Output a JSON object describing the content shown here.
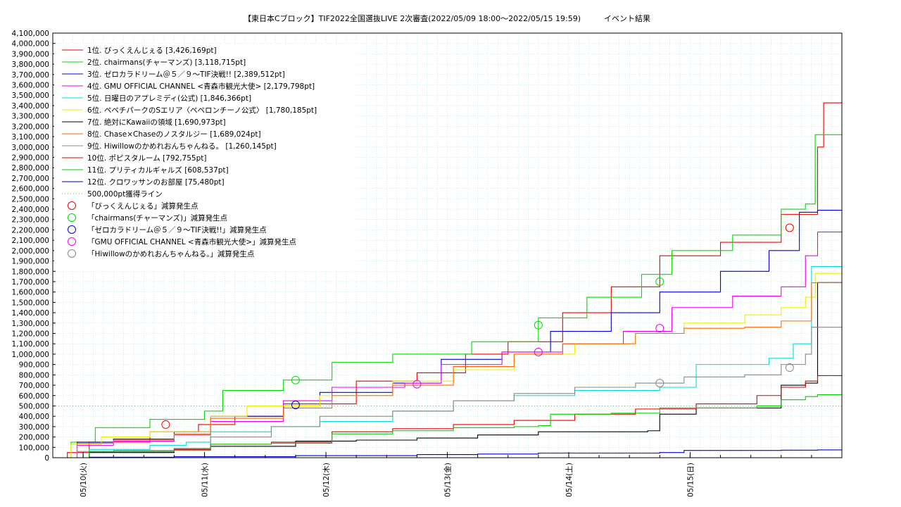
{
  "chart_data": {
    "type": "line",
    "title": "【東日本Cブロック】TIF2022全国選抜LIVE 2次審査(2022/05/09 18:00～2022/05/15 19:59)　　　イベント結果",
    "x_start": "2022/05/09 18:00",
    "x_end": "2022/05/15 19:59",
    "x_ticks": [
      "05/10(火)",
      "05/11(水)",
      "05/12(木)",
      "05/13(金)",
      "05/14(土)",
      "05/15(日)"
    ],
    "ylim": [
      0,
      4100000
    ],
    "y_tick_step": 100000,
    "grid": true,
    "legend_position": "top-left",
    "threshold": {
      "label": "500,000pt獲得ライン",
      "value": 500000,
      "color": "#66cc66"
    },
    "series": [
      {
        "name": "1位. びっくえんじぇる [3,426,169pt]",
        "color": "#ee0000",
        "points": [
          [
            0,
            0
          ],
          [
            0.12,
            50000
          ],
          [
            0.3,
            150000
          ],
          [
            0.8,
            250000
          ],
          [
            1.2,
            320000
          ],
          [
            1.5,
            400000
          ],
          [
            1.9,
            520000
          ],
          [
            2.5,
            740000
          ],
          [
            3.0,
            820000
          ],
          [
            3.4,
            1000000
          ],
          [
            3.75,
            1120000
          ],
          [
            4.2,
            1400000
          ],
          [
            4.6,
            1650000
          ],
          [
            5.0,
            1950000
          ],
          [
            5.5,
            2080000
          ],
          [
            6.0,
            2350000
          ],
          [
            6.2,
            2350000
          ],
          [
            6.3,
            3000000
          ],
          [
            6.35,
            3426169
          ],
          [
            6.5,
            3426169
          ]
        ]
      },
      {
        "name": "2位. chairmans(チャーマンズ) [3,118,715pt]",
        "color": "#00dd00",
        "points": [
          [
            0,
            0
          ],
          [
            0.15,
            150000
          ],
          [
            0.35,
            290000
          ],
          [
            0.8,
            370000
          ],
          [
            1.25,
            450000
          ],
          [
            1.4,
            650000
          ],
          [
            1.9,
            750000
          ],
          [
            2.3,
            920000
          ],
          [
            2.8,
            1000000
          ],
          [
            3.45,
            1120000
          ],
          [
            4.0,
            1350000
          ],
          [
            4.4,
            1550000
          ],
          [
            4.85,
            1770000
          ],
          [
            5.1,
            2000000
          ],
          [
            5.6,
            2150000
          ],
          [
            6.0,
            2400000
          ],
          [
            6.2,
            2450000
          ],
          [
            6.28,
            3118715
          ],
          [
            6.5,
            3118715
          ]
        ]
      },
      {
        "name": "3位. ゼロカラドリーム＠５／９〜TIF決戦!! [2,389,512pt]",
        "color": "#0000dd",
        "points": [
          [
            0,
            0
          ],
          [
            0.2,
            150000
          ],
          [
            0.5,
            180000
          ],
          [
            1.0,
            250000
          ],
          [
            1.3,
            400000
          ],
          [
            1.9,
            500000
          ],
          [
            2.2,
            630000
          ],
          [
            2.8,
            720000
          ],
          [
            3.2,
            950000
          ],
          [
            3.7,
            1020000
          ],
          [
            4.1,
            1220000
          ],
          [
            4.6,
            1400000
          ],
          [
            5.0,
            1600000
          ],
          [
            5.5,
            1800000
          ],
          [
            5.9,
            2000000
          ],
          [
            6.15,
            2370000
          ],
          [
            6.3,
            2389512
          ],
          [
            6.5,
            2389512
          ]
        ]
      },
      {
        "name": "4位. GMU OFFICIAL CHANNEL <青森市観光大使> [2,179,798pt]",
        "color": "#ee00ee",
        "points": [
          [
            0,
            0
          ],
          [
            0.2,
            120000
          ],
          [
            0.5,
            160000
          ],
          [
            1.0,
            220000
          ],
          [
            1.3,
            350000
          ],
          [
            1.9,
            550000
          ],
          [
            2.3,
            680000
          ],
          [
            2.9,
            720000
          ],
          [
            3.2,
            900000
          ],
          [
            3.7,
            1020000
          ],
          [
            4.2,
            1100000
          ],
          [
            4.7,
            1220000
          ],
          [
            5.1,
            1450000
          ],
          [
            5.6,
            1560000
          ],
          [
            6.0,
            1650000
          ],
          [
            6.2,
            1950000
          ],
          [
            6.3,
            2179798
          ],
          [
            6.5,
            2179798
          ]
        ]
      },
      {
        "name": "5位. 日曜日のアプレミディ(公式) [1,846,366pt]",
        "color": "#00dddd",
        "points": [
          [
            0,
            0
          ],
          [
            0.3,
            80000
          ],
          [
            0.8,
            120000
          ],
          [
            1.1,
            150000
          ],
          [
            1.3,
            250000
          ],
          [
            1.8,
            300000
          ],
          [
            2.2,
            350000
          ],
          [
            2.8,
            450000
          ],
          [
            3.3,
            550000
          ],
          [
            3.8,
            600000
          ],
          [
            4.3,
            650000
          ],
          [
            5.0,
            680000
          ],
          [
            5.3,
            900000
          ],
          [
            5.9,
            960000
          ],
          [
            6.1,
            1100000
          ],
          [
            6.25,
            1846366
          ],
          [
            6.5,
            1846366
          ]
        ]
      },
      {
        "name": "6位. ペペチパークのSエリア〈ペペロンチーノ公式〉 [1,780,185pt]",
        "color": "#eeee00",
        "points": [
          [
            0,
            0
          ],
          [
            0.15,
            130000
          ],
          [
            0.4,
            200000
          ],
          [
            0.8,
            250000
          ],
          [
            1.3,
            400000
          ],
          [
            1.6,
            500000
          ],
          [
            2.2,
            600000
          ],
          [
            2.8,
            740000
          ],
          [
            3.3,
            850000
          ],
          [
            3.8,
            1000000
          ],
          [
            4.3,
            1100000
          ],
          [
            4.8,
            1200000
          ],
          [
            5.2,
            1300000
          ],
          [
            5.7,
            1380000
          ],
          [
            6.0,
            1450000
          ],
          [
            6.2,
            1550000
          ],
          [
            6.28,
            1780185
          ],
          [
            6.5,
            1780185
          ]
        ]
      },
      {
        "name": "7位. 絶対にKawaiiの領域 [1,690,973pt]",
        "color": "#000000",
        "points": [
          [
            0,
            0
          ],
          [
            0.3,
            50000
          ],
          [
            1.0,
            80000
          ],
          [
            1.3,
            110000
          ],
          [
            2.0,
            160000
          ],
          [
            2.5,
            170000
          ],
          [
            3.0,
            190000
          ],
          [
            3.5,
            220000
          ],
          [
            4.0,
            250000
          ],
          [
            4.9,
            260000
          ],
          [
            5.0,
            420000
          ],
          [
            5.3,
            480000
          ],
          [
            5.8,
            480000
          ],
          [
            6.0,
            700000
          ],
          [
            6.2,
            720000
          ],
          [
            6.3,
            1690973
          ],
          [
            6.5,
            1690973
          ]
        ]
      },
      {
        "name": "8位. Chase×Chaseのノスタルジー [1,689,024pt]",
        "color": "#ff6600",
        "points": [
          [
            0,
            0
          ],
          [
            0.2,
            140000
          ],
          [
            0.5,
            170000
          ],
          [
            1.0,
            230000
          ],
          [
            1.3,
            380000
          ],
          [
            1.9,
            480000
          ],
          [
            2.3,
            600000
          ],
          [
            2.8,
            700000
          ],
          [
            3.3,
            880000
          ],
          [
            3.8,
            1000000
          ],
          [
            4.2,
            1100000
          ],
          [
            4.8,
            1200000
          ],
          [
            5.2,
            1250000
          ],
          [
            5.7,
            1260000
          ],
          [
            6.0,
            1320000
          ],
          [
            6.25,
            1689024
          ],
          [
            6.5,
            1689024
          ]
        ]
      },
      {
        "name": "9位. Hiwillowのかめれおんちゃんねる。 [1,260,145pt]",
        "color": "#888888",
        "points": [
          [
            0,
            0
          ],
          [
            0.2,
            60000
          ],
          [
            0.5,
            70000
          ],
          [
            1.0,
            90000
          ],
          [
            1.3,
            200000
          ],
          [
            1.8,
            300000
          ],
          [
            2.2,
            400000
          ],
          [
            2.8,
            450000
          ],
          [
            3.3,
            550000
          ],
          [
            3.8,
            620000
          ],
          [
            4.3,
            680000
          ],
          [
            4.8,
            720000
          ],
          [
            5.2,
            780000
          ],
          [
            5.7,
            800000
          ],
          [
            6.0,
            900000
          ],
          [
            6.2,
            1000000
          ],
          [
            6.25,
            1260145
          ],
          [
            6.5,
            1260145
          ]
        ]
      },
      {
        "name": "10位. ポピスタルーム [792,755pt]",
        "color": "#dd0000",
        "points": [
          [
            0,
            0
          ],
          [
            0.3,
            60000
          ],
          [
            1.0,
            80000
          ],
          [
            1.3,
            130000
          ],
          [
            1.8,
            150000
          ],
          [
            2.3,
            250000
          ],
          [
            2.8,
            280000
          ],
          [
            3.3,
            320000
          ],
          [
            3.8,
            360000
          ],
          [
            4.3,
            420000
          ],
          [
            4.8,
            470000
          ],
          [
            5.3,
            520000
          ],
          [
            5.8,
            600000
          ],
          [
            6.0,
            680000
          ],
          [
            6.2,
            740000
          ],
          [
            6.3,
            792755
          ],
          [
            6.5,
            792755
          ]
        ]
      },
      {
        "name": "11位. プリティカルギャルズ [608,537pt]",
        "color": "#00cc00",
        "points": [
          [
            0,
            0
          ],
          [
            0.3,
            60000
          ],
          [
            1.0,
            70000
          ],
          [
            1.3,
            130000
          ],
          [
            1.8,
            140000
          ],
          [
            2.3,
            230000
          ],
          [
            2.8,
            260000
          ],
          [
            3.3,
            290000
          ],
          [
            3.8,
            300000
          ],
          [
            4.0,
            310000
          ],
          [
            4.1,
            420000
          ],
          [
            4.6,
            430000
          ],
          [
            5.0,
            480000
          ],
          [
            5.8,
            500000
          ],
          [
            6.0,
            560000
          ],
          [
            6.2,
            590000
          ],
          [
            6.3,
            608537
          ],
          [
            6.5,
            608537
          ]
        ]
      },
      {
        "name": "12位. クロワッサンのお部屋 [75,480pt]",
        "color": "#0000cc",
        "points": [
          [
            0,
            0
          ],
          [
            0.3,
            5000
          ],
          [
            1.0,
            10000
          ],
          [
            2.0,
            20000
          ],
          [
            3.0,
            30000
          ],
          [
            3.5,
            35000
          ],
          [
            4.0,
            45000
          ],
          [
            5.0,
            50000
          ],
          [
            5.2,
            70000
          ],
          [
            6.0,
            73000
          ],
          [
            6.3,
            75480
          ],
          [
            6.5,
            75480
          ]
        ]
      }
    ],
    "markers": [
      {
        "name": "「びっくえんじぇる」減算発生点",
        "color": "#ee0000",
        "points": [
          [
            0.93,
            320000
          ],
          [
            6.07,
            2220000
          ]
        ]
      },
      {
        "name": "「chairmans(チャーマンズ)」減算発生点",
        "color": "#00dd00",
        "points": [
          [
            2.0,
            750000
          ],
          [
            4.0,
            1280000
          ],
          [
            5.0,
            1700000
          ]
        ]
      },
      {
        "name": "「ゼロカラドリーム＠５／９〜TIF決戦!!」減算発生点",
        "color": "#0000dd",
        "points": [
          [
            2.0,
            510000
          ]
        ]
      },
      {
        "name": "「GMU OFFICIAL CHANNEL <青森市観光大使>」減算発生点",
        "color": "#ee00ee",
        "points": [
          [
            3.0,
            710000
          ],
          [
            4.0,
            1020000
          ],
          [
            5.0,
            1250000
          ]
        ]
      },
      {
        "name": "「Hiwillowのかめれおんちゃんねる。」減算発生点",
        "color": "#888888",
        "points": [
          [
            5.0,
            720000
          ],
          [
            6.07,
            870000
          ]
        ]
      }
    ]
  }
}
